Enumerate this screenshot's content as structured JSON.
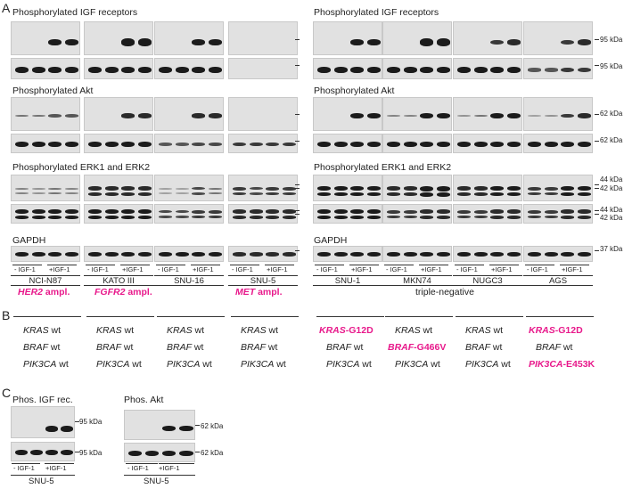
{
  "panel_letters": {
    "a": "A",
    "b": "B",
    "c": "C"
  },
  "panel_a": {
    "titles_left": [
      "Phosphorylated IGF receptors",
      "Phosphorylated Akt",
      "Phosphorylated ERK1 and ERK2",
      "GAPDH"
    ],
    "titles_right": [
      "Phosphorylated IGF receptors",
      "Phosphorylated Akt",
      "Phosphorylated ERK1 and ERK2",
      "GAPDH"
    ],
    "mw_labels": {
      "igf_phos": "95 kDa",
      "igf_total": "95 kDa",
      "akt_phos": "62 kDa",
      "akt_total": "62 kDa",
      "erk_phos_44": "44 kDa",
      "erk_phos_42": "42 kDa",
      "erk_total_44": "44 kDa",
      "erk_total_42": "42 kDa",
      "gapdh": "37 kDa"
    },
    "conditions": {
      "minus": "- IGF-1",
      "plus": "+IGF-1"
    },
    "cell_lines": [
      "NCI-N87",
      "KATO III",
      "SNU-16",
      "SNU-5",
      "SNU-1",
      "MKN74",
      "NUGC3",
      "AGS"
    ],
    "amplifications": [
      {
        "gene": "HER2",
        "suffix": " ampl."
      },
      {
        "gene": "FGFR2",
        "suffix": " ampl."
      },
      {
        "gene": "MET",
        "suffix": " ampl."
      }
    ],
    "triple_negative": "triple-negative"
  },
  "panel_b": {
    "genotypes": [
      {
        "kras": "KRAS",
        "kras_status": " wt",
        "braf": "BRAF",
        "braf_status": " wt",
        "pik3ca": "PIK3CA",
        "pik3ca_status": " wt"
      },
      {
        "kras": "KRAS",
        "kras_status": " wt",
        "braf": "BRAF",
        "braf_status": " wt",
        "pik3ca": "PIK3CA",
        "pik3ca_status": " wt"
      },
      {
        "kras": "KRAS",
        "kras_status": " wt",
        "braf": "BRAF",
        "braf_status": " wt",
        "pik3ca": "PIK3CA",
        "pik3ca_status": " wt"
      },
      {
        "kras": "KRAS",
        "kras_status": " wt",
        "braf": "BRAF",
        "braf_status": " wt",
        "pik3ca": "PIK3CA",
        "pik3ca_status": " wt"
      },
      {
        "kras": "KRAS",
        "kras_status": "-G12D",
        "braf": "BRAF",
        "braf_status": " wt",
        "pik3ca": "PIK3CA",
        "pik3ca_status": " wt"
      },
      {
        "kras": "KRAS",
        "kras_status": " wt",
        "braf": "BRAF",
        "braf_status": "-G466V",
        "pik3ca": "PIK3CA",
        "pik3ca_status": " wt"
      },
      {
        "kras": "KRAS",
        "kras_status": " wt",
        "braf": "BRAF",
        "braf_status": " wt",
        "pik3ca": "PIK3CA",
        "pik3ca_status": " wt"
      },
      {
        "kras": "KRAS",
        "kras_status": "-G12D",
        "braf": "BRAF",
        "braf_status": " wt",
        "pik3ca": "PIK3CA",
        "pik3ca_status": "-E453K"
      }
    ]
  },
  "panel_c": {
    "left": {
      "title": "Phos. IGF rec.",
      "mw_phos": "95 kDa",
      "mw_total": "95 kDa",
      "minus": "- IGF-1",
      "plus": "+IGF-1",
      "cell_line": "SNU-5"
    },
    "right": {
      "title": "Phos. Akt",
      "mw_phos": "62 kDa",
      "mw_total": "62 kDa",
      "minus": "- IGF-1",
      "plus": "+IGF-1",
      "cell_line": "SNU-5"
    }
  },
  "colors": {
    "mutation": "#e8198b",
    "band": "#1b1b1b",
    "membrane": "#e1e1e1"
  }
}
